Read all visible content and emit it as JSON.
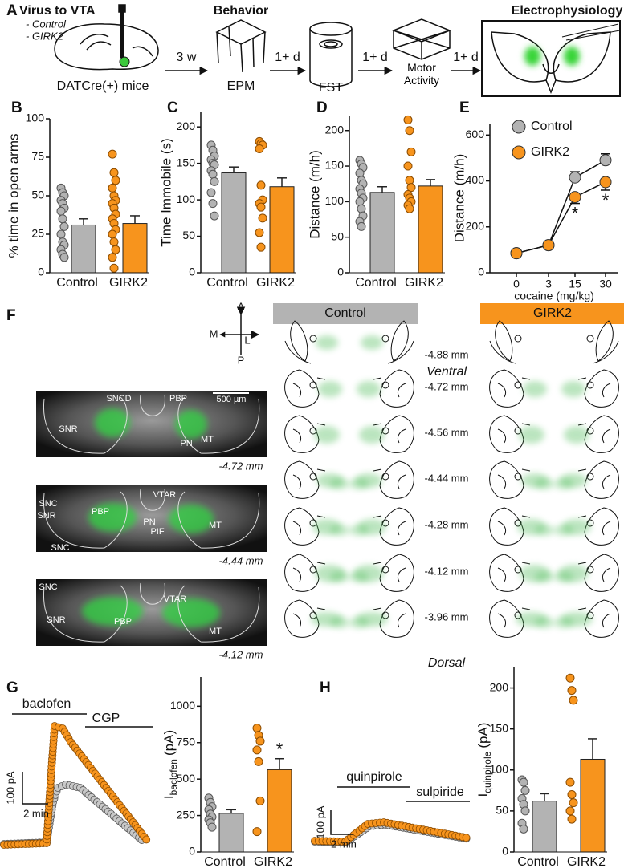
{
  "panel_a": {
    "letter": "A",
    "virus_title": "Virus to VTA",
    "groups": [
      "- Control",
      "- GIRK2"
    ],
    "mice": "DATCre(+) mice",
    "behavior": "Behavior",
    "ephys": "Electrophysiology",
    "intervals": [
      "3 w",
      "1+ d",
      "1+ d",
      "1+ d"
    ],
    "tests": [
      "EPM",
      "FST",
      "Motor Activity"
    ]
  },
  "chart_data": [
    {
      "type": "bar",
      "panel": "B",
      "ylabel": "% time in open arms",
      "categories": [
        "Control",
        "GIRK2"
      ],
      "values": [
        31,
        32
      ],
      "errors": [
        4,
        5
      ],
      "points": [
        [
          55,
          52,
          50,
          47,
          45,
          42,
          40,
          35,
          30,
          25,
          20,
          18,
          15,
          12,
          10
        ],
        [
          77,
          65,
          60,
          55,
          50,
          47,
          45,
          42,
          38,
          35,
          32,
          28,
          25,
          20,
          15,
          10,
          3
        ]
      ],
      "colors": [
        "#b3b3b3",
        "#f7941d"
      ],
      "ylim": [
        0,
        100
      ],
      "yticks": [
        0,
        25,
        50,
        75,
        100
      ]
    },
    {
      "type": "bar",
      "panel": "C",
      "ylabel": "Time Immobile (s)",
      "categories": [
        "Control",
        "GIRK2"
      ],
      "values": [
        137,
        118
      ],
      "errors": [
        8,
        12
      ],
      "points": [
        [
          175,
          168,
          160,
          155,
          150,
          148,
          140,
          135,
          125,
          110,
          95,
          78
        ],
        [
          180,
          177,
          175,
          170,
          120,
          100,
          95,
          90,
          75,
          55,
          35
        ]
      ],
      "colors": [
        "#b3b3b3",
        "#f7941d"
      ],
      "ylim": [
        0,
        220
      ],
      "yticks": [
        0,
        50,
        100,
        150,
        200
      ]
    },
    {
      "type": "bar",
      "panel": "D",
      "ylabel": "Distance (m/h)",
      "categories": [
        "Control",
        "GIRK2"
      ],
      "values": [
        113,
        122
      ],
      "errors": [
        8,
        9
      ],
      "points": [
        [
          158,
          153,
          148,
          140,
          130,
          125,
          118,
          112,
          105,
          100,
          90,
          80,
          72,
          65
        ],
        [
          215,
          200,
          170,
          150,
          130,
          120,
          110,
          105,
          100,
          95,
          90
        ]
      ],
      "colors": [
        "#b3b3b3",
        "#f7941d"
      ],
      "ylim": [
        0,
        220
      ],
      "yticks": [
        0,
        50,
        100,
        150,
        200
      ]
    },
    {
      "type": "line",
      "panel": "E",
      "ylabel": "Distance (m/h)",
      "xlabel": "cocaine (mg/kg)",
      "categories": [
        "0",
        "3",
        "15",
        "30"
      ],
      "series": [
        {
          "name": "Control",
          "color": "#b3b3b3",
          "values": [
            85,
            120,
            415,
            490
          ],
          "errors": [
            10,
            10,
            25,
            28
          ]
        },
        {
          "name": "GIRK2",
          "color": "#f7941d",
          "values": [
            85,
            120,
            330,
            395
          ],
          "errors": [
            10,
            10,
            28,
            35
          ]
        }
      ],
      "annotations": [
        null,
        null,
        "*",
        "*"
      ],
      "ylim": [
        0,
        650
      ],
      "yticks": [
        0,
        200,
        400,
        600
      ]
    },
    {
      "type": "bar",
      "ylabel": {
        "symbol": "I",
        "subscript": "baclofen",
        "unit": "(pA)"
      },
      "categories": [
        "Control",
        "GIRK2"
      ],
      "values": [
        265,
        565
      ],
      "errors": [
        25,
        75
      ],
      "points": [
        [
          370,
          340,
          310,
          290,
          260,
          240,
          220,
          200,
          170
        ],
        [
          850,
          800,
          760,
          700,
          620,
          350,
          140
        ]
      ],
      "annotations": [
        null,
        "*"
      ],
      "colors": [
        "#b3b3b3",
        "#f7941d"
      ],
      "ylim": [
        0,
        1200
      ],
      "yticks": [
        0,
        250,
        500,
        750,
        1000
      ]
    },
    {
      "type": "bar",
      "ylabel": {
        "symbol": "I",
        "subscript": "quinpirole",
        "unit": "(pA)"
      },
      "categories": [
        "Control",
        "GIRK2"
      ],
      "values": [
        62,
        113
      ],
      "errors": [
        9,
        25
      ],
      "points": [
        [
          88,
          85,
          75,
          65,
          58,
          50,
          35,
          28
        ],
        [
          212,
          197,
          185,
          85,
          70,
          60,
          50,
          40
        ]
      ],
      "colors": [
        "#b3b3b3",
        "#f7941d"
      ],
      "ylim": [
        0,
        225
      ],
      "yticks": [
        0,
        50,
        100,
        150,
        200
      ]
    }
  ],
  "panel_f": {
    "letter": "F",
    "compass": {
      "a": "A",
      "p": "P",
      "m": "M",
      "l": "L"
    },
    "groups": [
      "Control",
      "GIRK2"
    ],
    "ventral": "Ventral",
    "dorsal": "Dorsal",
    "depths": [
      "-4.88 mm",
      "-4.72 mm",
      "-4.56 mm",
      "-4.44 mm",
      "-4.28 mm",
      "-4.12 mm",
      "-3.96 mm"
    ],
    "scale_bar": "500 µm",
    "sections": [
      {
        "labels": [
          "SNCD",
          "PBP",
          "SNR",
          "PN",
          "MT"
        ],
        "level": "-4.72 mm"
      },
      {
        "labels": [
          "VTAR",
          "SNC",
          "SNR",
          "PBP",
          "PN",
          "PIF",
          "MT",
          "SNC"
        ],
        "level": "-4.44 mm"
      },
      {
        "labels": [
          "SNC",
          "VTAR",
          "SNR",
          "PBP",
          "MT"
        ],
        "level": "-4.12 mm"
      }
    ]
  },
  "panel_g": {
    "letter": "G",
    "drugs": [
      "baclofen",
      "CGP"
    ],
    "scale": [
      "100 pA",
      "2 min"
    ]
  },
  "panel_h": {
    "letter": "H",
    "drugs": [
      "quinpirole",
      "sulpiride"
    ],
    "scale": [
      "100 pA",
      "2 min"
    ]
  }
}
